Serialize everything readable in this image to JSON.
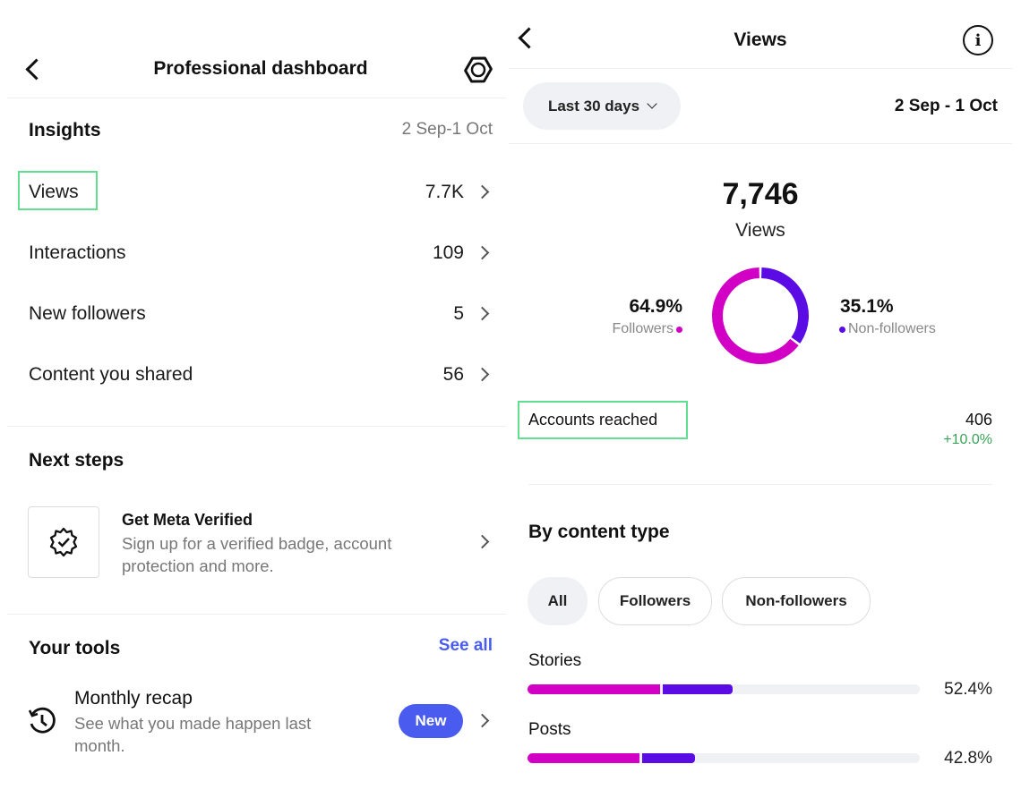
{
  "left": {
    "header": {
      "title": "Professional dashboard"
    },
    "insights": {
      "title": "Insights",
      "date_range": "2 Sep-1 Oct",
      "rows": [
        {
          "label": "Views",
          "value": "7.7K"
        },
        {
          "label": "Interactions",
          "value": "109"
        },
        {
          "label": "New followers",
          "value": "5"
        },
        {
          "label": "Content you shared",
          "value": "56"
        }
      ]
    },
    "next_steps": {
      "title": "Next steps",
      "card_title": "Get Meta Verified",
      "card_desc": "Sign up for a verified badge, account protection and more."
    },
    "tools": {
      "title": "Your tools",
      "see_all": "See all",
      "item_title": "Monthly recap",
      "item_desc": "See what you made happen last month.",
      "badge": "New"
    }
  },
  "right": {
    "header": {
      "title": "Views"
    },
    "filter": {
      "selected": "Last 30 days",
      "date_range": "2 Sep - 1 Oct"
    },
    "total": {
      "value": "7,746",
      "label": "Views"
    },
    "split": {
      "followers_pct": "64.9%",
      "followers_label": "Followers",
      "non_followers_pct": "35.1%",
      "non_followers_label": "Non-followers",
      "followers_value": 64.9,
      "non_followers_value": 35.1
    },
    "accounts_reached": {
      "label": "Accounts reached",
      "value": "406",
      "change": "+10.0%"
    },
    "by_content": {
      "title": "By content type",
      "tabs": [
        "All",
        "Followers",
        "Non-followers"
      ],
      "items": [
        {
          "label": "Stories",
          "pct": "52.4%",
          "followers_fill": 33.8,
          "non_followers_fill": 18.6
        },
        {
          "label": "Posts",
          "pct": "42.8%",
          "followers_fill": 28.5,
          "non_followers_fill": 14.3
        }
      ]
    }
  },
  "colors": {
    "followers": "#d100c4",
    "non_followers": "#5b0be3",
    "accent": "#4a5cf0",
    "positive": "#3aa158",
    "highlight": "#5ee08f"
  }
}
